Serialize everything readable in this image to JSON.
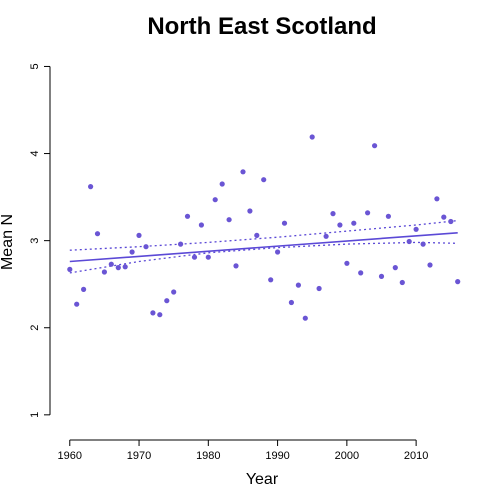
{
  "chart_data": {
    "type": "scatter",
    "title": "North East Scotland",
    "xlabel": "Year",
    "ylabel": "Mean N",
    "xlim": [
      1958.3,
      2017.2
    ],
    "ylim": [
      0.78,
      5.12
    ],
    "x_ticks": [
      1960,
      1970,
      1980,
      1990,
      2000,
      2010
    ],
    "y_ticks": [
      1,
      2,
      3,
      4,
      5
    ],
    "grid": false,
    "colors": {
      "points": "#6a55d4",
      "fit": "#5b49d6"
    },
    "series": [
      {
        "type": "scatter",
        "x": [
          1960,
          1961,
          1962,
          1963,
          1964,
          1965,
          1966,
          1967,
          1968,
          1969,
          1970,
          1971,
          1972,
          1973,
          1974,
          1975,
          1976,
          1977,
          1978,
          1979,
          1980,
          1981,
          1982,
          1983,
          1984,
          1985,
          1986,
          1987,
          1988,
          1989,
          1990,
          1991,
          1992,
          1993,
          1994,
          1995,
          1996,
          1997,
          1998,
          1999,
          2000,
          2001,
          2002,
          2003,
          2004,
          2005,
          2006,
          2007,
          2008,
          2009,
          2010,
          2011,
          2012,
          2013,
          2014,
          2015,
          2016
        ],
        "y": [
          2.67,
          2.27,
          2.44,
          3.62,
          3.08,
          2.64,
          2.73,
          2.69,
          2.7,
          2.87,
          3.06,
          2.93,
          2.17,
          2.15,
          2.31,
          2.41,
          2.96,
          3.28,
          2.81,
          3.18,
          2.81,
          3.47,
          3.65,
          3.24,
          2.71,
          3.79,
          3.34,
          3.06,
          3.7,
          2.55,
          2.87,
          3.2,
          2.29,
          2.49,
          2.11,
          4.19,
          2.45,
          3.05,
          3.31,
          3.18,
          2.74,
          3.2,
          2.63,
          3.32,
          4.09,
          2.59,
          3.28,
          2.69,
          2.52,
          2.99,
          3.13,
          2.96,
          2.72,
          3.48,
          3.27,
          3.22,
          2.53
        ]
      },
      {
        "type": "line",
        "style": "solid",
        "x": [
          1960,
          2016
        ],
        "y": [
          2.76,
          3.09
        ]
      },
      {
        "type": "line",
        "style": "dotted",
        "x": [
          1960,
          1970,
          1980,
          1990,
          2000,
          2010,
          2016
        ],
        "y": [
          2.89,
          2.93,
          2.98,
          3.04,
          3.11,
          3.18,
          3.23
        ]
      },
      {
        "type": "line",
        "style": "dotted",
        "x": [
          1960,
          1970,
          1980,
          1990,
          2000,
          2010,
          2016
        ],
        "y": [
          2.63,
          2.76,
          2.86,
          2.92,
          2.96,
          2.98,
          2.97
        ]
      }
    ]
  }
}
